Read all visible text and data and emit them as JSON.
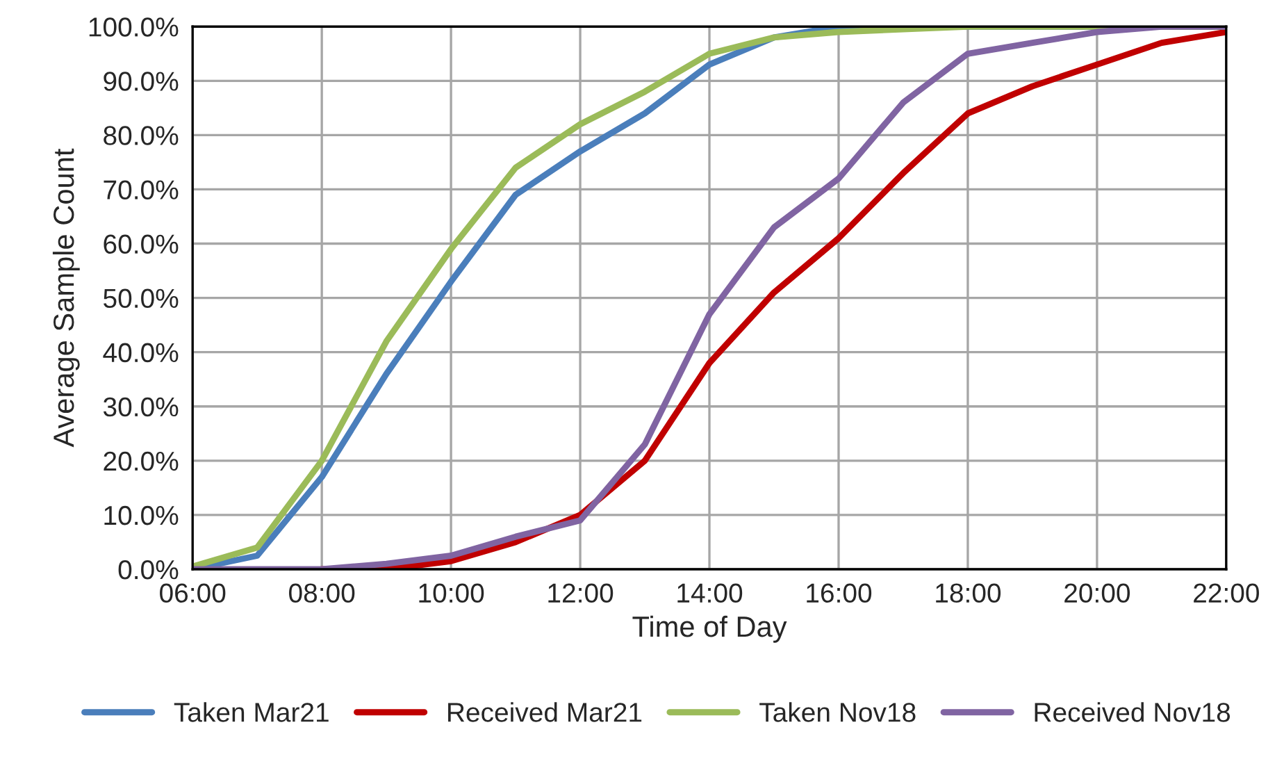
{
  "chart_data": {
    "type": "line",
    "xlabel": "Time of Day",
    "ylabel": "Average Sample Count",
    "x": [
      6,
      7,
      8,
      9,
      10,
      11,
      12,
      13,
      14,
      15,
      16,
      17,
      18,
      19,
      20,
      21,
      22
    ],
    "series": [
      {
        "name": "Taken Mar21",
        "color": "#4a7ebb",
        "values": [
          0,
          2.5,
          17,
          36,
          53,
          69,
          77,
          84,
          93,
          98,
          100,
          100,
          100,
          100,
          100,
          100,
          100
        ]
      },
      {
        "name": "Received Mar21",
        "color": "#c00000",
        "values": [
          null,
          null,
          0,
          0,
          1.5,
          5,
          10,
          20,
          38,
          51,
          61,
          73,
          84,
          89,
          93,
          97,
          99
        ]
      },
      {
        "name": "Taken Nov18",
        "color": "#9bbb59",
        "values": [
          0.5,
          4,
          20,
          42,
          59,
          74,
          82,
          88,
          95,
          98,
          99,
          99.5,
          100,
          100,
          100,
          100,
          100
        ]
      },
      {
        "name": "Received Nov18",
        "color": "#8064a2",
        "values": [
          0,
          0,
          0,
          1,
          2.5,
          6,
          9,
          23,
          47,
          63,
          72,
          86,
          95,
          97,
          99,
          100,
          100
        ]
      }
    ],
    "xlim": [
      6,
      22
    ],
    "xticks": [
      {
        "value": 6,
        "label": "06:00"
      },
      {
        "value": 8,
        "label": "08:00"
      },
      {
        "value": 10,
        "label": "10:00"
      },
      {
        "value": 12,
        "label": "12:00"
      },
      {
        "value": 14,
        "label": "14:00"
      },
      {
        "value": 16,
        "label": "16:00"
      },
      {
        "value": 18,
        "label": "18:00"
      },
      {
        "value": 20,
        "label": "20:00"
      },
      {
        "value": 22,
        "label": "22:00"
      }
    ],
    "ylim": [
      0,
      100
    ],
    "yticks": [
      {
        "value": 0,
        "label": "0.0%"
      },
      {
        "value": 10,
        "label": "10.0%"
      },
      {
        "value": 20,
        "label": "20.0%"
      },
      {
        "value": 30,
        "label": "30.0%"
      },
      {
        "value": 40,
        "label": "40.0%"
      },
      {
        "value": 50,
        "label": "50.0%"
      },
      {
        "value": 60,
        "label": "60.0%"
      },
      {
        "value": 70,
        "label": "70.0%"
      },
      {
        "value": 80,
        "label": "80.0%"
      },
      {
        "value": 90,
        "label": "90.0%"
      },
      {
        "value": 100,
        "label": "100.0%"
      }
    ],
    "grid": true,
    "legend": "bottom",
    "marker": "none",
    "line_style": "solid"
  }
}
